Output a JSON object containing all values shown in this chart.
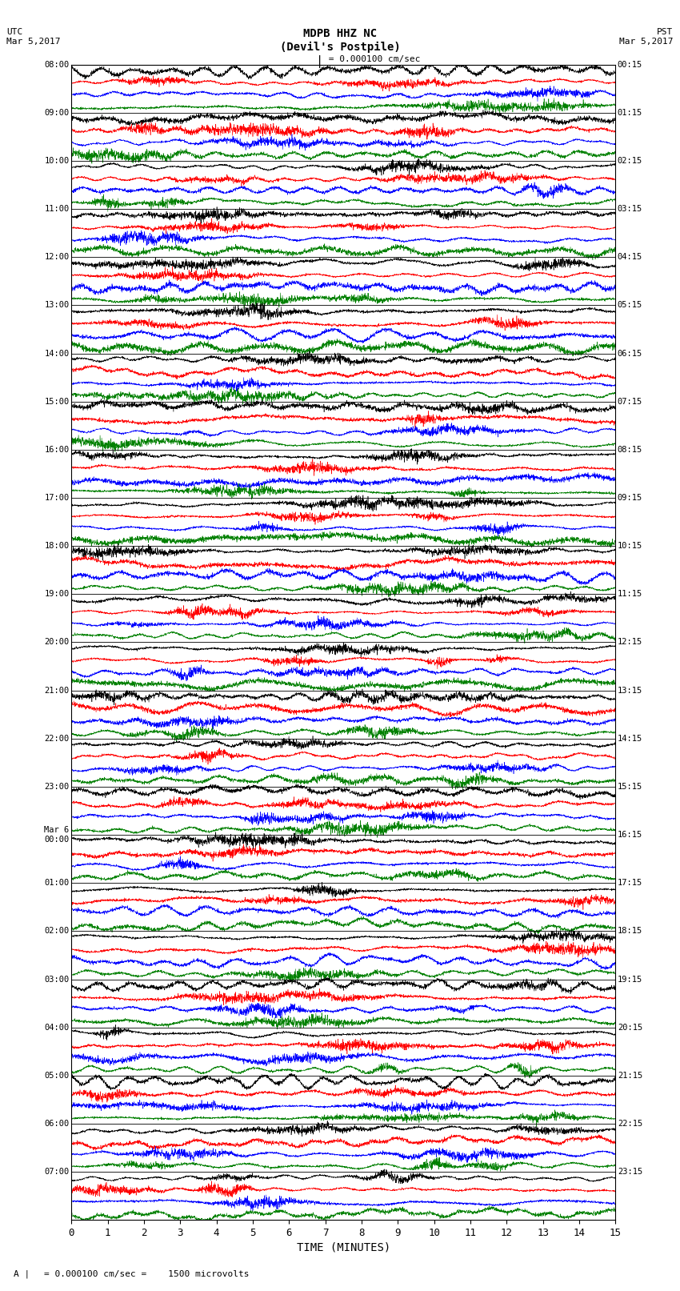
{
  "title_line1": "MDPB HHZ NC",
  "title_line2": "(Devil's Postpile)",
  "scale_label": "= 0.000100 cm/sec",
  "utc_label": "UTC\nMar 5,2017",
  "pst_label": "PST\nMar 5,2017",
  "xlabel": "TIME (MINUTES)",
  "footnote": "= 0.000100 cm/sec =    1500 microvolts",
  "left_times": [
    "08:00",
    "09:00",
    "10:00",
    "11:00",
    "12:00",
    "13:00",
    "14:00",
    "15:00",
    "16:00",
    "17:00",
    "18:00",
    "19:00",
    "20:00",
    "21:00",
    "22:00",
    "23:00",
    "Mar 6\n00:00",
    "01:00",
    "02:00",
    "03:00",
    "04:00",
    "05:00",
    "06:00",
    "07:00"
  ],
  "right_times": [
    "00:15",
    "01:15",
    "02:15",
    "03:15",
    "04:15",
    "05:15",
    "06:15",
    "07:15",
    "08:15",
    "09:15",
    "10:15",
    "11:15",
    "12:15",
    "13:15",
    "14:15",
    "15:15",
    "16:15",
    "17:15",
    "18:15",
    "19:15",
    "20:15",
    "21:15",
    "22:15",
    "23:15"
  ],
  "n_rows": 24,
  "n_traces_per_row": 4,
  "colors": [
    "black",
    "red",
    "blue",
    "green"
  ],
  "x_min": 0,
  "x_max": 15,
  "x_ticks": [
    0,
    1,
    2,
    3,
    4,
    5,
    6,
    7,
    8,
    9,
    10,
    11,
    12,
    13,
    14,
    15
  ],
  "fig_width": 8.5,
  "fig_height": 16.13,
  "dpi": 100,
  "bg_color": "white",
  "noise_seed": 42
}
